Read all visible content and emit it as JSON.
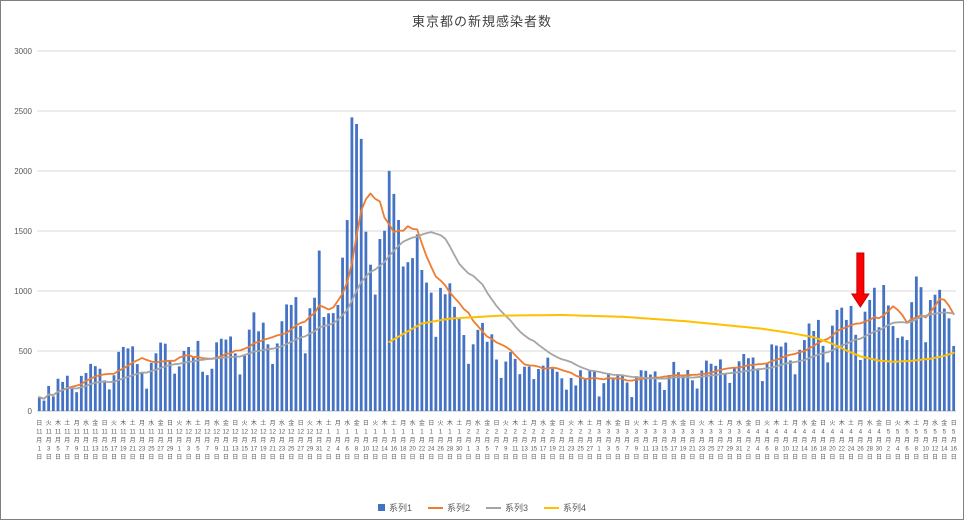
{
  "title": "東京都の新規感染者数",
  "legend": [
    {
      "label": "系列1",
      "color": "#4472C4",
      "marker": "bar"
    },
    {
      "label": "系列2",
      "color": "#ED7D31",
      "marker": "line"
    },
    {
      "label": "系列3",
      "color": "#A5A5A5",
      "marker": "line"
    },
    {
      "label": "系列4",
      "color": "#FFC000",
      "marker": "line"
    }
  ],
  "y_axis": {
    "ticks": [
      0,
      500,
      1000,
      1500,
      2000,
      2500,
      3000
    ]
  },
  "x_axis": {
    "weekdays": [
      "日",
      "月",
      "火",
      "水",
      "木",
      "金",
      "土"
    ],
    "start_weekday_index": 0,
    "months": [
      {
        "month": 11,
        "days": 30
      },
      {
        "month": 12,
        "days": 31
      },
      {
        "month": 1,
        "days": 31
      },
      {
        "month": 2,
        "days": 28
      },
      {
        "month": 3,
        "days": 31
      },
      {
        "month": 4,
        "days": 30
      },
      {
        "month": 5,
        "days": 16
      }
    ],
    "label_every": 2,
    "month_suffix": "月",
    "day_suffix": "日"
  },
  "chart_data": {
    "type": "bar",
    "title": "東京都の新規感染者数",
    "ylim": [
      0,
      3000
    ],
    "grid": true,
    "legend_position": "bottom",
    "categories_rule": "daily dates from 11月1日 (Sunday) to 5月16日, tick label every 2nd day",
    "series": [
      {
        "name": "系列1",
        "type": "bar",
        "color": "#4472C4",
        "values": [
          116,
          87,
          209,
          122,
          269,
          242,
          294,
          189,
          157,
          293,
          317,
          393,
          374,
          352,
          255,
          180,
          298,
          493,
          534,
          522,
          539,
          391,
          314,
          186,
          401,
          481,
          570,
          561,
          418,
          311,
          372,
          500,
          533,
          449,
          584,
          327,
          299,
          352,
          572,
          602,
          595,
          621,
          480,
          305,
          460,
          678,
          822,
          664,
          736,
          556,
          392,
          563,
          748,
          888,
          884,
          949,
          708,
          481,
          856,
          944,
          1337,
          783,
          814,
          816,
          884,
          1278,
          1591,
          2447,
          2392,
          2268,
          1494,
          1219,
          970,
          1433,
          1502,
          2001,
          1809,
          1592,
          1204,
          1240,
          1274,
          1471,
          1175,
          1070,
          986,
          618,
          1026,
          973,
          1064,
          868,
          769,
          633,
          393,
          556,
          676,
          734,
          577,
          639,
          429,
          276,
          412,
          491,
          434,
          307,
          369,
          371,
          266,
          350,
          378,
          445,
          353,
          327,
          272,
          178,
          275,
          213,
          340,
          270,
          337,
          329,
          121,
          232,
          316,
          279,
          301,
          293,
          237,
          116,
          290,
          340,
          335,
          304,
          330,
          239,
          175,
          300,
          409,
          323,
          303,
          342,
          256,
          187,
          337,
          420,
          394,
          376,
          430,
          313,
          234,
          364,
          414,
          475,
          440,
          446,
          355,
          249,
          399,
          555,
          545,
          537,
          570,
          421,
          306,
          510,
          591,
          729,
          667,
          759,
          543,
          405,
          711,
          843,
          861,
          759,
          876,
          635,
          425,
          828,
          925,
          1027,
          698,
          1050,
          879,
          708,
          609,
          621,
          591,
          907,
          1121,
          1032,
          573,
          925,
          969,
          1010,
          854,
          772,
          542
        ]
      },
      {
        "name": "系列2",
        "type": "line",
        "color": "#ED7D31",
        "derived": "7-day trailing moving average of 系列1",
        "window": 7
      },
      {
        "name": "系列3",
        "type": "line",
        "color": "#A5A5A5",
        "derived": "21-day trailing moving average of 系列1",
        "window": 21
      },
      {
        "name": "系列4",
        "type": "line",
        "color": "#FFC000",
        "points": [
          {
            "i": 75,
            "v": 575
          },
          {
            "i": 82,
            "v": 730
          },
          {
            "i": 88,
            "v": 770
          },
          {
            "i": 99,
            "v": 795
          },
          {
            "i": 112,
            "v": 800
          },
          {
            "i": 125,
            "v": 785
          },
          {
            "i": 138,
            "v": 750
          },
          {
            "i": 146,
            "v": 720
          },
          {
            "i": 155,
            "v": 685
          },
          {
            "i": 161,
            "v": 650
          },
          {
            "i": 166,
            "v": 615
          },
          {
            "i": 170,
            "v": 560
          },
          {
            "i": 173,
            "v": 505
          },
          {
            "i": 176,
            "v": 455
          },
          {
            "i": 180,
            "v": 420
          },
          {
            "i": 183,
            "v": 410
          },
          {
            "i": 187,
            "v": 418
          },
          {
            "i": 191,
            "v": 435
          },
          {
            "i": 194,
            "v": 460
          },
          {
            "i": 196,
            "v": 485
          }
        ]
      }
    ],
    "annotation": {
      "type": "red-arrow-down",
      "index": 176,
      "fill": "#FF0000",
      "outline": "#C00000"
    }
  }
}
